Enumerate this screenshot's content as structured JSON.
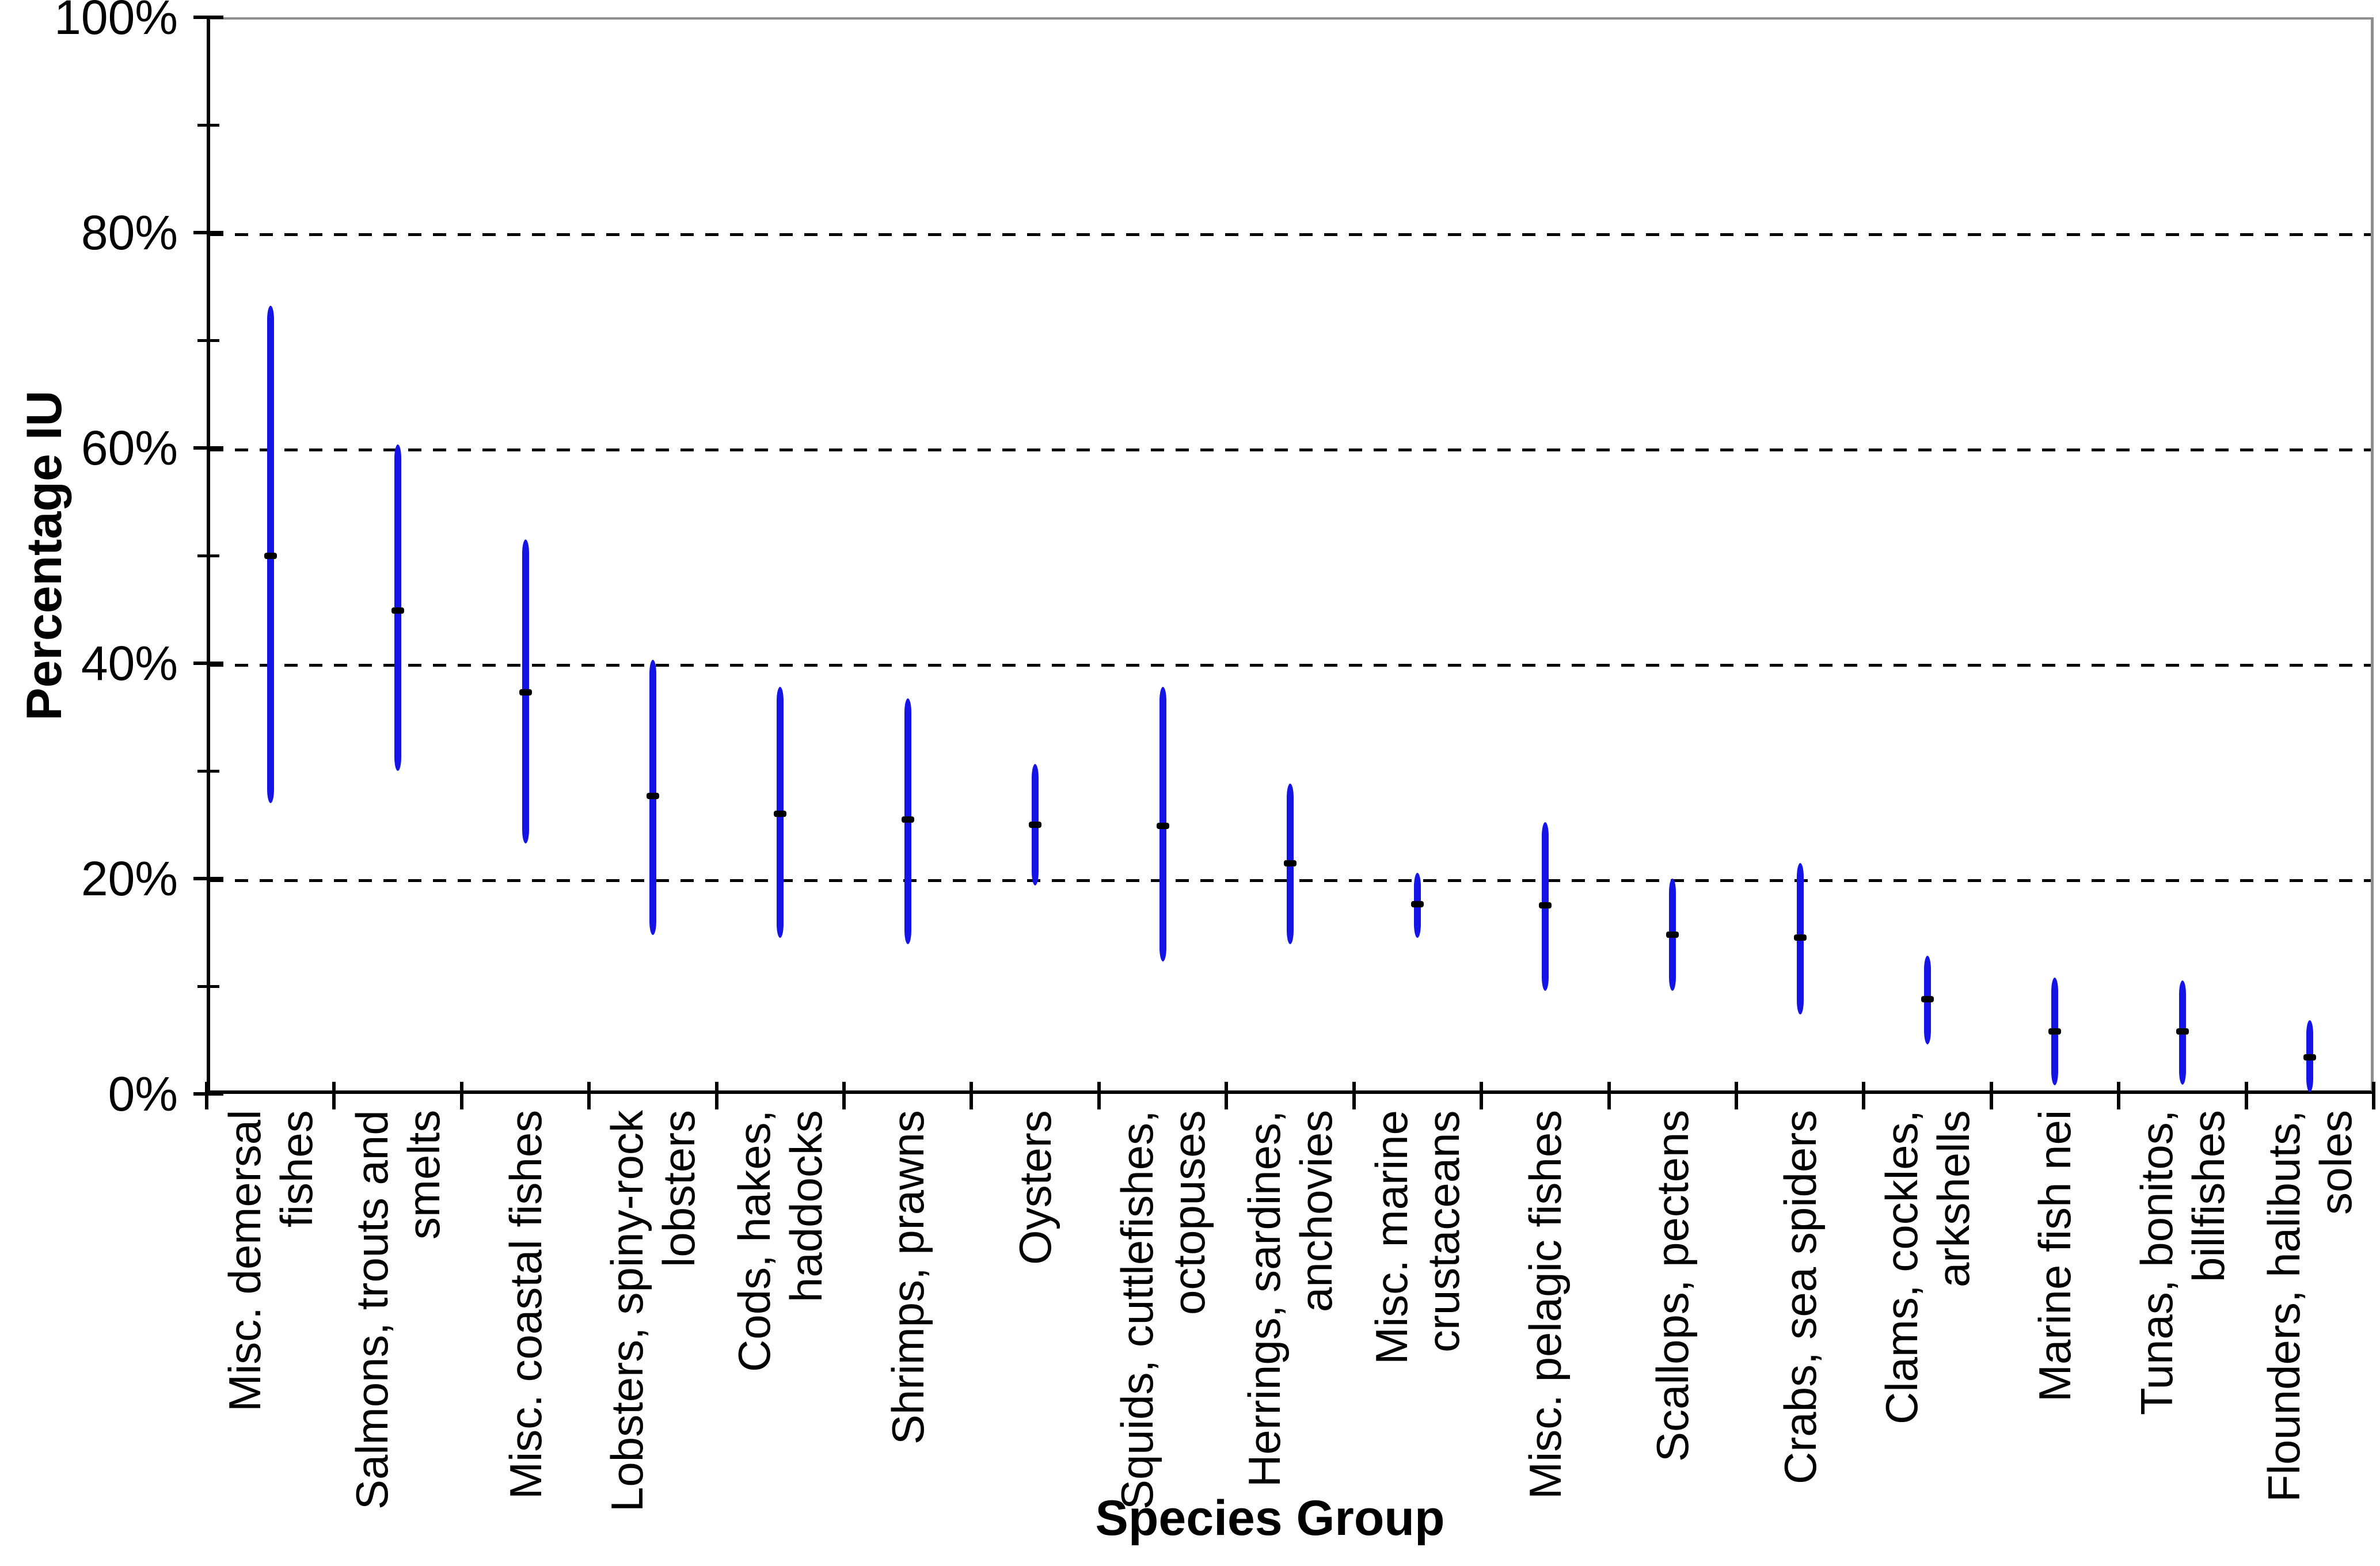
{
  "chart_data": {
    "type": "bar",
    "subtype": "floating-range-bars-with-midpoint-markers",
    "title": "",
    "xlabel": "Species Group",
    "ylabel": "Percentage IU",
    "ylim": [
      0,
      100
    ],
    "grid": "horizontal dashed",
    "grid_values": [
      20,
      40,
      60,
      80
    ],
    "legend": "none",
    "bar_color": "#1414E6",
    "marker_color": "#000000",
    "axis_color": "#000000",
    "border_color": "#8F8F8F",
    "y_axis": {
      "ticks": [
        {
          "value": 0,
          "label": "0%"
        },
        {
          "value": 20,
          "label": "20%"
        },
        {
          "value": 40,
          "label": "40%"
        },
        {
          "value": 60,
          "label": "60%"
        },
        {
          "value": 80,
          "label": "80%"
        },
        {
          "value": 100,
          "label": "100%"
        }
      ],
      "minor_ticks": [
        10,
        30,
        50,
        70,
        90
      ]
    },
    "categories": [
      "Misc. demersal fishes",
      "Salmons, trouts and smelts",
      "Misc. coastal fishes",
      "Lobsters, spiny-rock lobsters",
      "Cods, hakes, haddocks",
      "Shrimps, prawns",
      "Oysters",
      "Squids, cuttlefishes, octopuses",
      "Herrings, sardines, anchovies",
      "Misc. marine crustaceans",
      "Misc. pelagic fishes",
      "Scallops, pectens",
      "Crabs, sea spiders",
      "Clams, cockles, arkshells",
      "Marine fish nei",
      "Tunas, bonitos, billfishes",
      "Flounders, halibuts, soles"
    ],
    "series": [
      {
        "label_lines": [
          "Misc. demersal",
          "fishes"
        ],
        "low": 27.3,
        "mid": 50.0,
        "high": 72.9
      },
      {
        "label_lines": [
          "Salmons, trouts and",
          "smelts"
        ],
        "low": 30.3,
        "mid": 44.9,
        "high": 60.0
      },
      {
        "label_lines": [
          "Misc. coastal fishes"
        ],
        "low": 23.6,
        "mid": 37.3,
        "high": 51.2
      },
      {
        "label_lines": [
          "Lobsters, spiny-rock",
          "lobsters"
        ],
        "low": 15.1,
        "mid": 27.7,
        "high": 40.0
      },
      {
        "label_lines": [
          "Cods, hakes,",
          "haddocks"
        ],
        "low": 14.8,
        "mid": 26.0,
        "high": 37.5
      },
      {
        "label_lines": [
          "Shrimps, prawns"
        ],
        "low": 14.2,
        "mid": 25.5,
        "high": 36.4
      },
      {
        "label_lines": [
          "Oysters"
        ],
        "low": 19.7,
        "mid": 25.0,
        "high": 30.3
      },
      {
        "label_lines": [
          "Squids, cuttlefishes,",
          "octopuses"
        ],
        "low": 12.6,
        "mid": 24.9,
        "high": 37.5
      },
      {
        "label_lines": [
          "Herrings, sardines,",
          "anchovies"
        ],
        "low": 14.2,
        "mid": 21.4,
        "high": 28.5
      },
      {
        "label_lines": [
          "Misc. marine",
          "crustaceans"
        ],
        "low": 14.8,
        "mid": 17.6,
        "high": 20.2
      },
      {
        "label_lines": [
          "Misc. pelagic fishes"
        ],
        "low": 9.9,
        "mid": 17.5,
        "high": 24.9
      },
      {
        "label_lines": [
          "Scallops, pectens"
        ],
        "low": 9.9,
        "mid": 14.8,
        "high": 19.7
      },
      {
        "label_lines": [
          "Crabs, sea spiders"
        ],
        "low": 7.7,
        "mid": 14.5,
        "high": 21.1
      },
      {
        "label_lines": [
          "Clams, cockles,",
          "arkshells"
        ],
        "low": 4.9,
        "mid": 8.8,
        "high": 12.5
      },
      {
        "label_lines": [
          "Marine fish nei"
        ],
        "low": 1.1,
        "mid": 5.8,
        "high": 10.5
      },
      {
        "label_lines": [
          "Tunas, bonitos,",
          "billfishes"
        ],
        "low": 1.2,
        "mid": 5.8,
        "high": 10.2
      },
      {
        "label_lines": [
          "Flounders, halibuts,",
          "soles"
        ],
        "low": 0.5,
        "mid": 3.4,
        "high": 6.5
      }
    ]
  }
}
